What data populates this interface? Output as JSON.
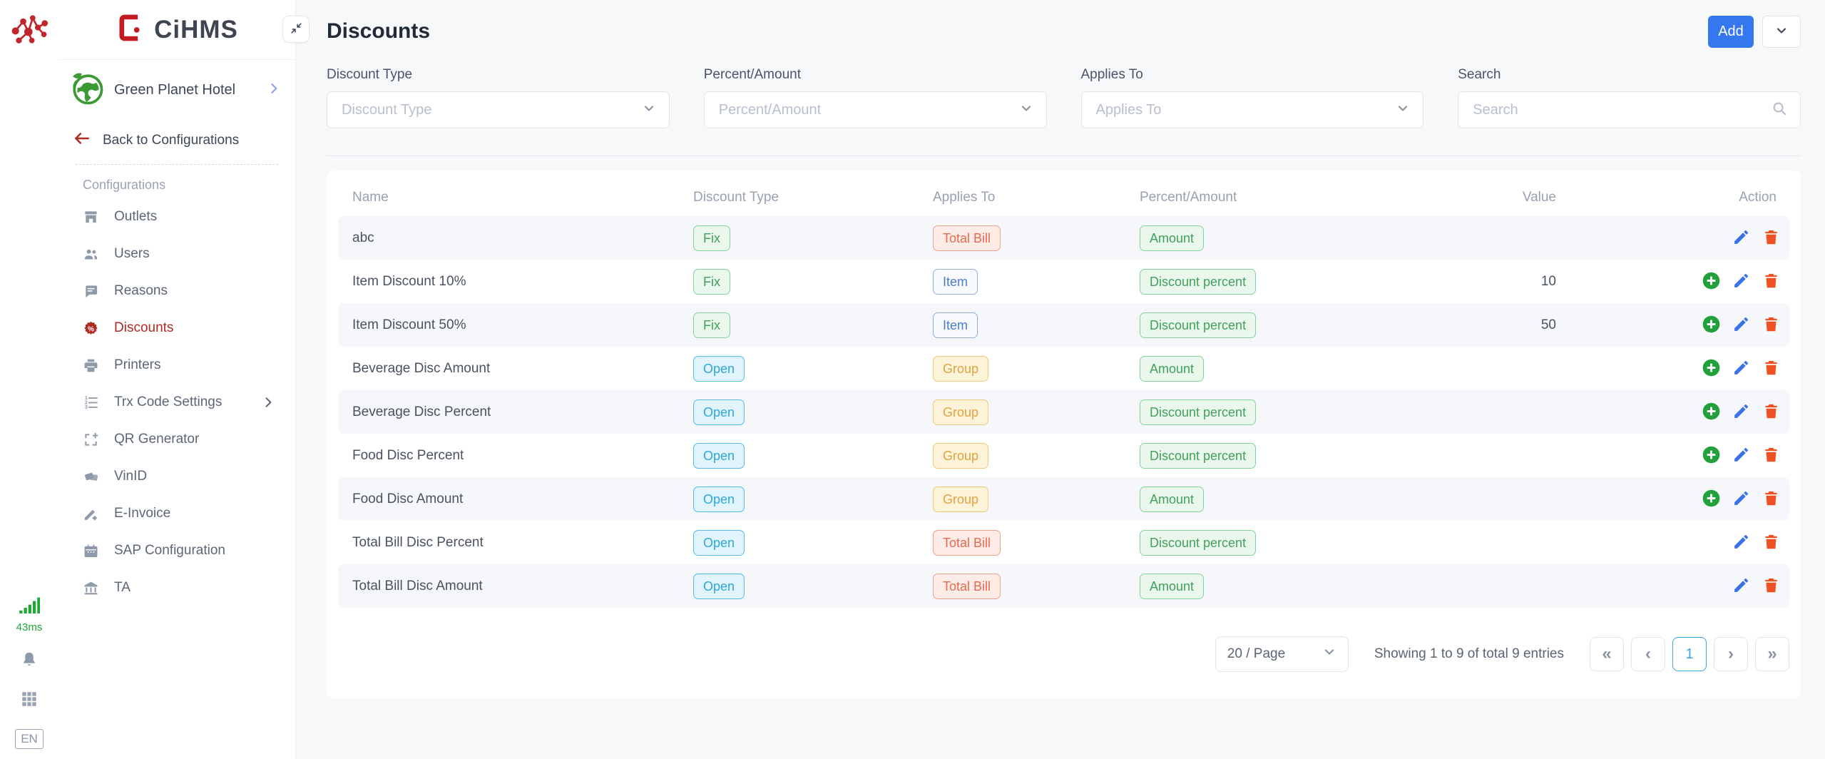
{
  "brand": {
    "logo_text": "CiHMS",
    "hotel_name": "Green Planet Hotel"
  },
  "rail": {
    "latency": "43ms",
    "language": "EN",
    "icons": [
      "network-icon",
      "signal-bars-icon",
      "bell-icon",
      "apps-grid-icon"
    ]
  },
  "sidebar": {
    "back_label": "Back to Configurations",
    "section_label": "Configurations",
    "items": [
      {
        "label": "Outlets",
        "icon": "storefront-icon",
        "active": false,
        "has_chevron": false
      },
      {
        "label": "Users",
        "icon": "users-icon",
        "active": false,
        "has_chevron": false
      },
      {
        "label": "Reasons",
        "icon": "chat-bubble-icon",
        "active": false,
        "has_chevron": false
      },
      {
        "label": "Discounts",
        "icon": "discount-badge-icon",
        "active": true,
        "has_chevron": false
      },
      {
        "label": "Printers",
        "icon": "printer-icon",
        "active": false,
        "has_chevron": false
      },
      {
        "label": "Trx Code Settings",
        "icon": "numbered-list-icon",
        "active": false,
        "has_chevron": true
      },
      {
        "label": "QR Generator",
        "icon": "qr-frame-plus-icon",
        "active": false,
        "has_chevron": false
      },
      {
        "label": "VinID",
        "icon": "cards-icon",
        "active": false,
        "has_chevron": false
      },
      {
        "label": "E-Invoice",
        "icon": "signature-gear-icon",
        "active": false,
        "has_chevron": false
      },
      {
        "label": "SAP Configuration",
        "icon": "calendar-icon",
        "active": false,
        "has_chevron": false
      },
      {
        "label": "TA",
        "icon": "bank-icon",
        "active": false,
        "has_chevron": false
      }
    ]
  },
  "header": {
    "title": "Discounts",
    "add_label": "Add"
  },
  "filters": {
    "discount_type": {
      "label": "Discount Type",
      "placeholder": "Discount Type"
    },
    "percent_amount": {
      "label": "Percent/Amount",
      "placeholder": "Percent/Amount"
    },
    "applies_to": {
      "label": "Applies To",
      "placeholder": "Applies To"
    },
    "search": {
      "label": "Search",
      "placeholder": "Search",
      "value": ""
    }
  },
  "table": {
    "columns": [
      "Name",
      "Discount Type",
      "Applies To",
      "Percent/Amount",
      "Value",
      "Action"
    ],
    "badge_styles": {
      "Fix": "green",
      "Open": "cyan",
      "Total Bill": "orange",
      "Item": "blue",
      "Group": "amber",
      "Amount": "green",
      "Discount percent": "green"
    },
    "rows": [
      {
        "name": "abc",
        "discount_type": "Fix",
        "applies_to": "Total Bill",
        "percent_amount": "Amount",
        "value": "",
        "actions": [
          "edit",
          "delete"
        ]
      },
      {
        "name": "Item Discount 10%",
        "discount_type": "Fix",
        "applies_to": "Item",
        "percent_amount": "Discount percent",
        "value": "10",
        "actions": [
          "add",
          "edit",
          "delete"
        ]
      },
      {
        "name": "Item Discount 50%",
        "discount_type": "Fix",
        "applies_to": "Item",
        "percent_amount": "Discount percent",
        "value": "50",
        "actions": [
          "add",
          "edit",
          "delete"
        ]
      },
      {
        "name": "Beverage Disc Amount",
        "discount_type": "Open",
        "applies_to": "Group",
        "percent_amount": "Amount",
        "value": "",
        "actions": [
          "add",
          "edit",
          "delete"
        ]
      },
      {
        "name": "Beverage Disc Percent",
        "discount_type": "Open",
        "applies_to": "Group",
        "percent_amount": "Discount percent",
        "value": "",
        "actions": [
          "add",
          "edit",
          "delete"
        ]
      },
      {
        "name": "Food Disc Percent",
        "discount_type": "Open",
        "applies_to": "Group",
        "percent_amount": "Discount percent",
        "value": "",
        "actions": [
          "add",
          "edit",
          "delete"
        ]
      },
      {
        "name": "Food Disc Amount",
        "discount_type": "Open",
        "applies_to": "Group",
        "percent_amount": "Amount",
        "value": "",
        "actions": [
          "add",
          "edit",
          "delete"
        ]
      },
      {
        "name": "Total Bill Disc Percent",
        "discount_type": "Open",
        "applies_to": "Total Bill",
        "percent_amount": "Discount percent",
        "value": "",
        "actions": [
          "edit",
          "delete"
        ]
      },
      {
        "name": "Total Bill Disc Amount",
        "discount_type": "Open",
        "applies_to": "Total Bill",
        "percent_amount": "Amount",
        "value": "",
        "actions": [
          "edit",
          "delete"
        ]
      }
    ]
  },
  "pagination": {
    "page_size": "20 / Page",
    "summary": "Showing 1 to 9 of total 9 entries",
    "first": "«",
    "prev": "‹",
    "current_page": "1",
    "next": "›",
    "last": "»"
  },
  "colors": {
    "accent_blue": "#3477ee",
    "active_red": "#b02a24",
    "logo_red": "#c41a21",
    "latency_green": "#21a637",
    "badge_green": "#43a05c",
    "badge_cyan": "#2ea7dc",
    "badge_orange": "#e56a50",
    "badge_blue": "#4a7bd0",
    "badge_amber": "#e2a23e",
    "action_add_green": "#21a03c",
    "action_edit_blue": "#3b72e8",
    "action_delete_orange": "#f05123",
    "page_bg": "#f7f8fa"
  }
}
